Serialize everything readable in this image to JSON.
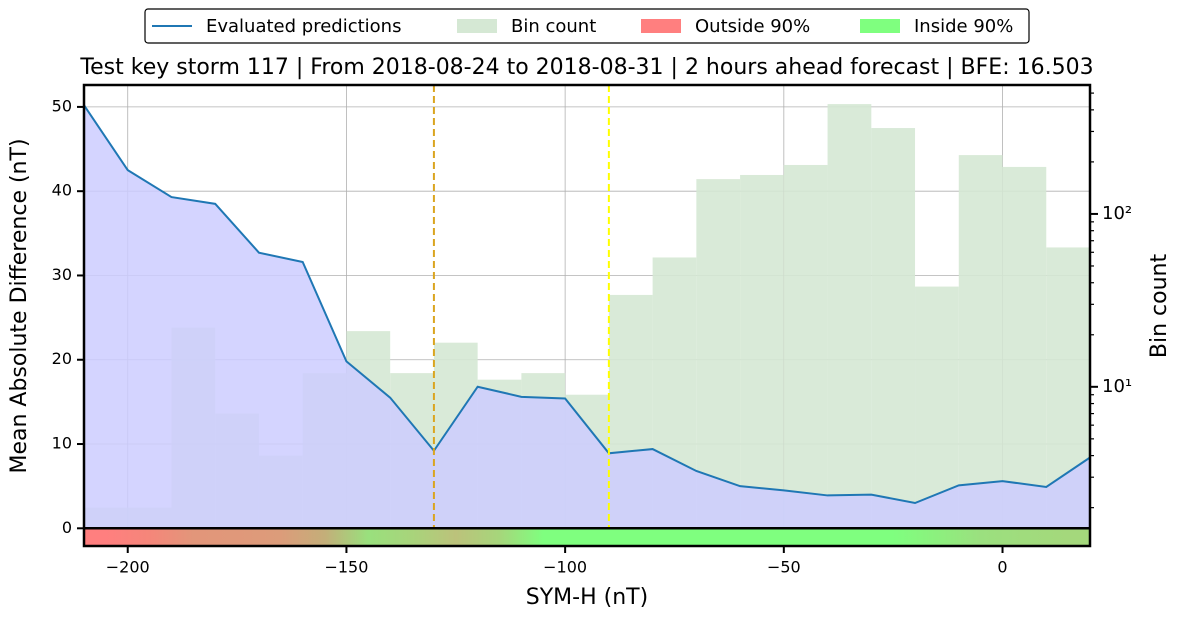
{
  "chart_data": {
    "type": "line",
    "title": "Test key storm 117 | From 2018-08-24 to 2018-08-31 | 2 hours ahead forecast | BFE: 16.503",
    "xlabel": "SYM-H (nT)",
    "ylabel": "Mean Absolute Difference (nT)",
    "y2label": "Bin count",
    "x": [
      -210,
      -200,
      -190,
      -180,
      -170,
      -160,
      -150,
      -140,
      -130,
      -120,
      -110,
      -100,
      -90,
      -80,
      -70,
      -60,
      -50,
      -40,
      -30,
      -20,
      -10,
      0,
      10,
      20
    ],
    "series": [
      {
        "name": "Evaluated predictions",
        "color": "#1f77b4",
        "fill": "#ccccff",
        "values": [
          50.2,
          42.5,
          39.3,
          38.5,
          32.7,
          31.6,
          19.8,
          15.5,
          9.2,
          16.8,
          15.6,
          15.4,
          8.9,
          9.4,
          6.8,
          5.0,
          4.5,
          3.9,
          4.0,
          3.0,
          5.1,
          5.6,
          4.9,
          8.4
        ]
      }
    ],
    "histogram": {
      "name": "Bin count",
      "color": "#d5e8d4",
      "axis": "y2",
      "bins": [
        -210,
        -200,
        -190,
        -180,
        -170,
        -160,
        -150,
        -140,
        -130,
        -120,
        -110,
        -100,
        -90,
        -80,
        -70,
        -60,
        -50,
        -40,
        -30,
        -20,
        -10,
        0,
        10,
        20
      ],
      "counts": [
        2,
        2,
        22,
        7,
        4,
        12,
        21,
        12,
        18,
        11,
        12,
        9,
        34,
        56,
        159,
        168,
        192,
        432,
        314,
        38,
        219,
        187,
        64
      ]
    },
    "band": {
      "legend": [
        {
          "name": "Outside 90%",
          "color": "#ff7f7f"
        },
        {
          "name": "Inside 90%",
          "color": "#7fff7f"
        }
      ],
      "colors": [
        "#ff7f7f",
        "#f5867a",
        "#e2967a",
        "#e0987a",
        "#dc9c7a",
        "#c4ae79",
        "#99e07d",
        "#a8d47b",
        "#bcc27b",
        "#a6d67b",
        "#7fff7f",
        "#7fff7f",
        "#7fff7f",
        "#7fff7f",
        "#7fff7f",
        "#7fff7f",
        "#7fff7f",
        "#7fff7f",
        "#7fff7f",
        "#8cf07e",
        "#9be07f",
        "#a0dc7d",
        "#a4d87c"
      ]
    },
    "vlines": [
      {
        "x": -130,
        "color": "#daa520"
      },
      {
        "x": -90,
        "color": "#ffff00"
      }
    ],
    "xlim": [
      -210,
      20
    ],
    "ylim": [
      -2.1,
      52.6
    ],
    "y2lim": [
      1.2,
      557
    ],
    "y2log": true,
    "xticks": [
      {
        "value": -200,
        "label": "−200"
      },
      {
        "value": -150,
        "label": "−150"
      },
      {
        "value": -100,
        "label": "−100"
      },
      {
        "value": -50,
        "label": "−50"
      },
      0
    ],
    "yticks": [
      0,
      10,
      20,
      30,
      40,
      50
    ],
    "y2ticks": [
      {
        "value": 10,
        "label": "10¹"
      },
      {
        "value": 100,
        "label": "10²"
      }
    ],
    "y2minorticks": [
      2,
      3,
      4,
      5,
      6,
      7,
      8,
      9,
      20,
      30,
      40,
      50,
      60,
      70,
      80,
      90,
      200,
      300,
      400,
      500
    ],
    "grid": true,
    "legend": "upper center"
  }
}
